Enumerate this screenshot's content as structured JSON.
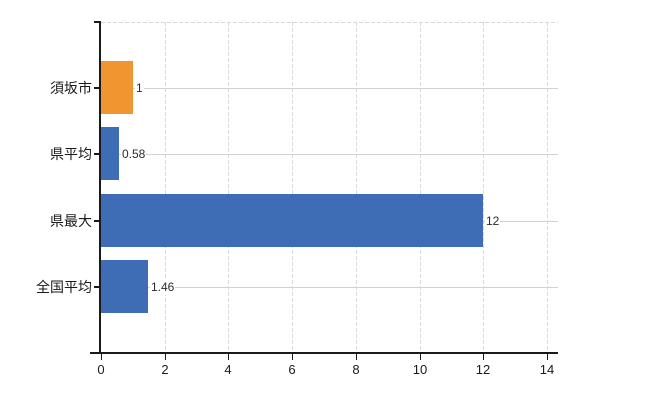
{
  "chart_data": {
    "type": "bar",
    "orientation": "horizontal",
    "title": "",
    "categories": [
      "須坂市",
      "県平均",
      "県最大",
      "全国平均"
    ],
    "values": [
      1,
      0.58,
      12,
      1.46
    ],
    "value_labels": [
      "1",
      "0.58",
      "12",
      "1.46"
    ],
    "series_colors": [
      "#f0952f",
      "#3e6db5",
      "#3e6db5",
      "#3e6db5"
    ],
    "x_ticks": [
      "0",
      "2",
      "4",
      "6",
      "8",
      "10",
      "12",
      "14"
    ],
    "x_tick_values": [
      0,
      2,
      4,
      6,
      8,
      10,
      12,
      14
    ],
    "xlim": [
      0,
      14
    ],
    "grid": "on",
    "legend": "none",
    "colors": {
      "highlight_bar": "#f0952f",
      "default_bar": "#3e6db5",
      "axis": "#1a1a1a",
      "gridline_dashed": "#d9d9d9",
      "gridline_solid": "#cdd5cd",
      "background": "#ffffff"
    }
  }
}
